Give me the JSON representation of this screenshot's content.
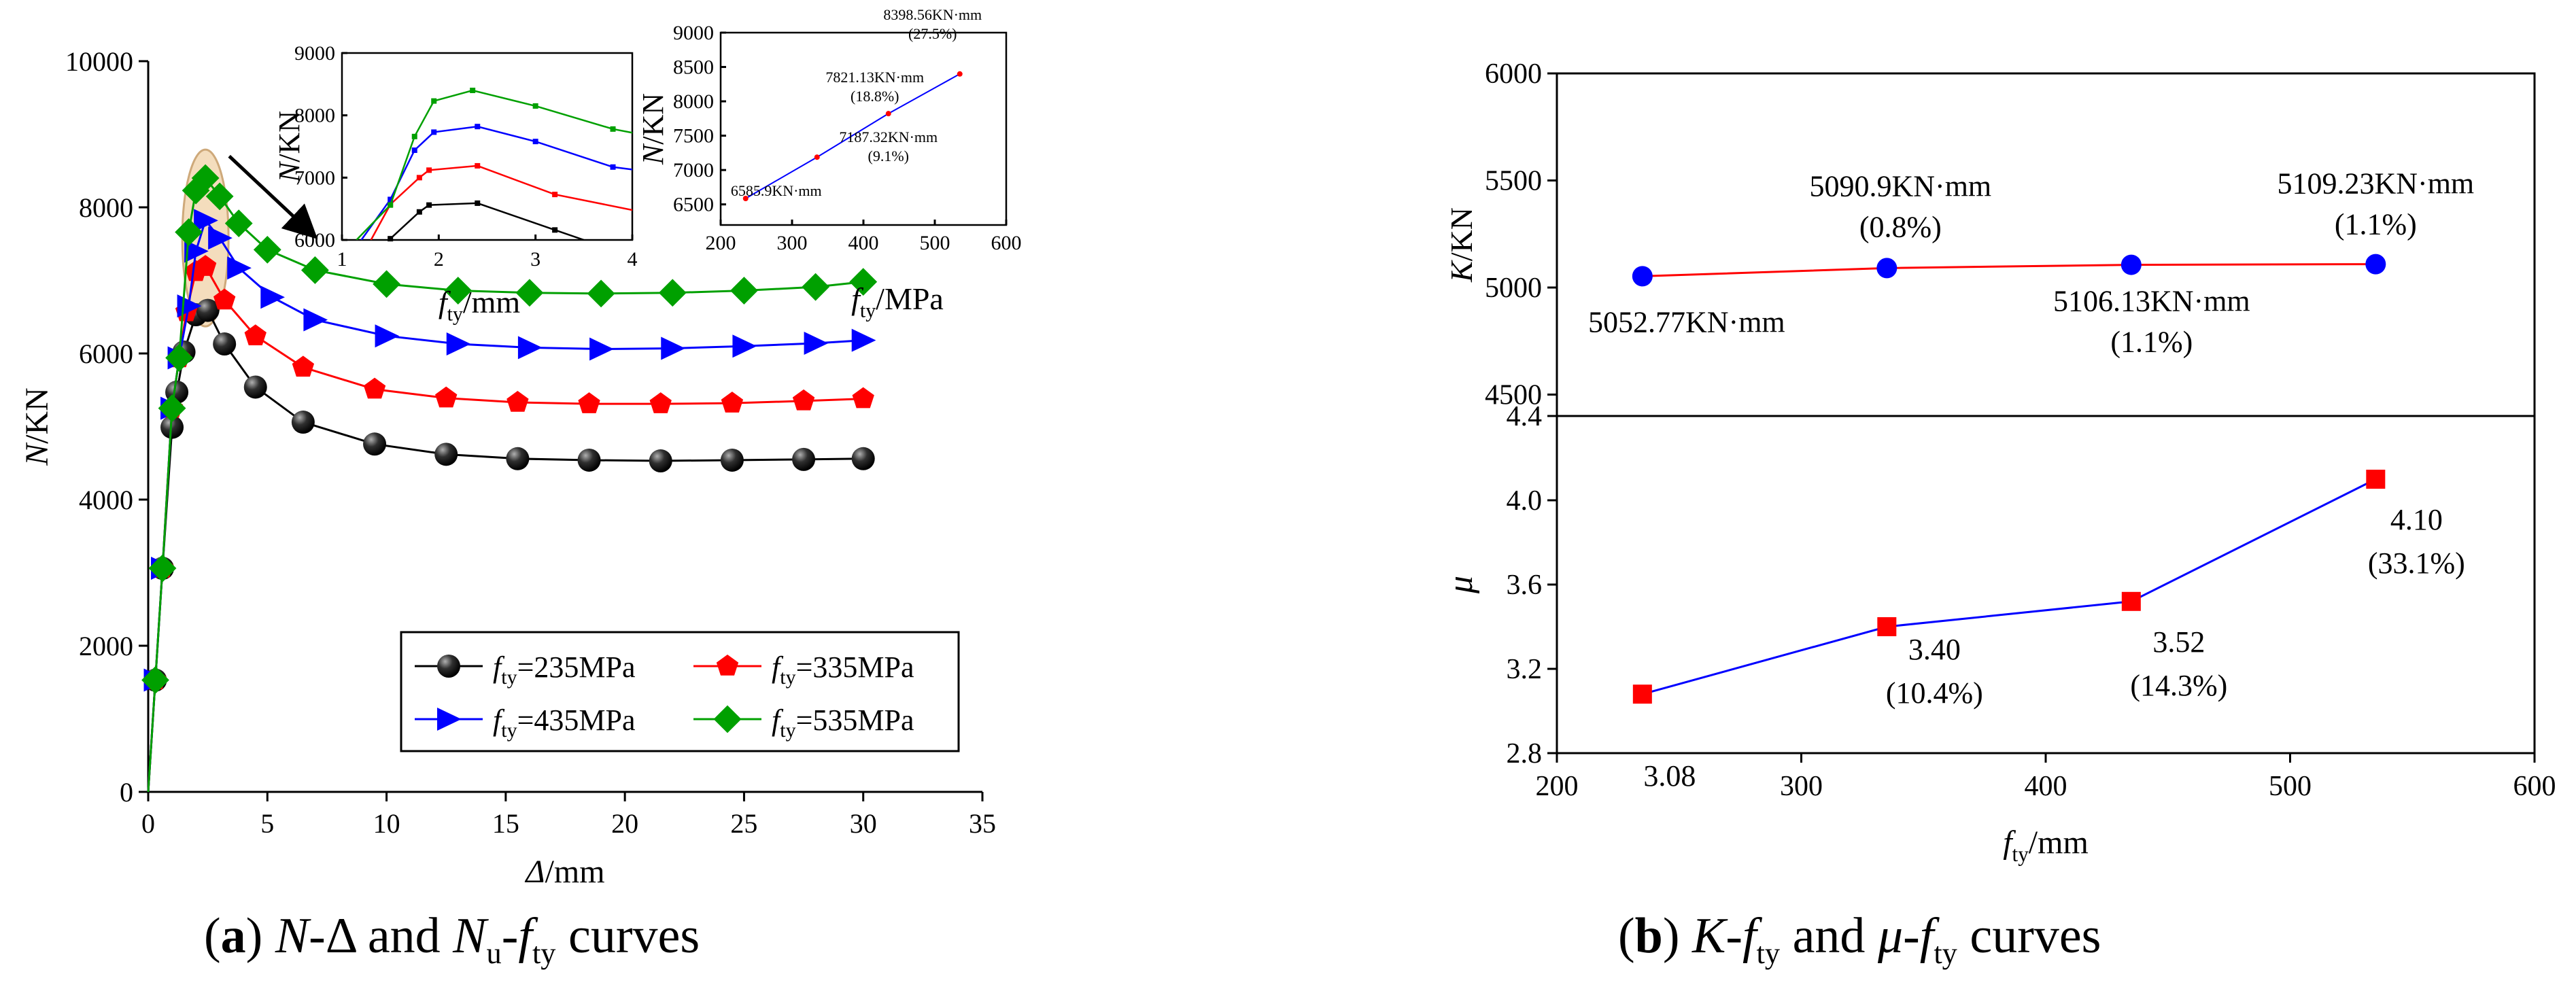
{
  "captions": {
    "a": {
      "letter": "a",
      "text_1": "N",
      "text_2": "-Δ and ",
      "text_3": "N",
      "text_4": "u",
      "text_5": "-",
      "text_6": "f",
      "text_7": "ty",
      "text_8": " curves"
    },
    "b": {
      "letter": "b",
      "text_1": "K",
      "text_2": "-",
      "text_3": "f",
      "text_4": "ty",
      "text_5": " and ",
      "text_6": "μ",
      "text_7": "-",
      "text_8": "f",
      "text_9": "ty",
      "text_10": " curves"
    }
  },
  "chart_data": [
    {
      "id": "a-main",
      "type": "line",
      "title": "",
      "xlabel": "Δ/mm",
      "ylabel": "N/KN",
      "xlim": [
        0,
        35
      ],
      "ylim": [
        0,
        10000
      ],
      "xticks": [
        0,
        5,
        10,
        15,
        20,
        25,
        30,
        35
      ],
      "yticks": [
        0,
        2000,
        4000,
        6000,
        8000,
        10000
      ],
      "grid": false,
      "legend_position": "bottom-right",
      "highlight_label": "f_ty/MPa",
      "series": [
        {
          "name": "f_ty=235MPa",
          "color": "#000000",
          "marker": "sphere",
          "x": [
            0,
            0.3,
            0.6,
            1.0,
            1.2,
            1.5,
            2.0,
            2.5,
            3.2,
            4.5,
            6.5,
            9.5,
            12.5,
            15.5,
            18.5,
            21.5,
            24.5,
            27.5,
            30
          ],
          "y": [
            0,
            1530,
            3060,
            4990,
            5470,
            6020,
            6530,
            6590,
            6130,
            5540,
            5060,
            4760,
            4620,
            4560,
            4540,
            4530,
            4540,
            4550,
            4560
          ]
        },
        {
          "name": "f_ty=335MPa",
          "color": "#ff0000",
          "marker": "pentagon",
          "x": [
            0,
            0.3,
            0.6,
            1.0,
            1.3,
            1.6,
            2.0,
            2.4,
            3.2,
            4.5,
            6.5,
            9.5,
            12.5,
            15.5,
            18.5,
            21.5,
            24.5,
            27.5,
            30
          ],
          "y": [
            0,
            1530,
            3060,
            5250,
            5940,
            6570,
            7120,
            7190,
            6730,
            6240,
            5810,
            5510,
            5390,
            5330,
            5310,
            5310,
            5320,
            5350,
            5380
          ]
        },
        {
          "name": "f_ty=435MPa",
          "color": "#0000ff",
          "marker": "triangle-right",
          "x": [
            0,
            0.3,
            0.6,
            1.0,
            1.3,
            1.7,
            2.0,
            2.4,
            3.0,
            3.8,
            5.2,
            7.0,
            10.0,
            13.0,
            16.0,
            19.0,
            22.0,
            25.0,
            28.0,
            30
          ],
          "y": [
            0,
            1530,
            3060,
            5250,
            5940,
            6650,
            7400,
            7820,
            7580,
            7170,
            6770,
            6460,
            6240,
            6130,
            6080,
            6060,
            6070,
            6100,
            6140,
            6180
          ]
        },
        {
          "name": "f_ty=535MPa",
          "color": "#00a000",
          "marker": "diamond",
          "x": [
            0,
            0.3,
            0.6,
            1.0,
            1.3,
            1.7,
            2.0,
            2.4,
            3.0,
            3.8,
            5.0,
            7.0,
            10.0,
            13.0,
            16.0,
            19.0,
            22.0,
            25.0,
            28.0,
            30
          ],
          "y": [
            0,
            1530,
            3060,
            5250,
            5940,
            7660,
            8230,
            8400,
            8150,
            7780,
            7420,
            7140,
            6950,
            6860,
            6830,
            6820,
            6830,
            6860,
            6910,
            6980
          ]
        }
      ]
    },
    {
      "id": "a-inset-zoom",
      "type": "line",
      "title": "",
      "xlabel": "f_ty/mm",
      "ylabel": "N/KN",
      "xlim": [
        1,
        4
      ],
      "ylim": [
        6000,
        9000
      ],
      "xticks": [
        1,
        2,
        3,
        4
      ],
      "yticks": [
        6000,
        7000,
        8000,
        9000
      ],
      "series": [
        {
          "name": "f_ty=235MPa",
          "color": "#000000",
          "x": [
            1.5,
            1.8,
            1.9,
            2.4,
            3.2,
            3.5
          ],
          "y": [
            6020,
            6450,
            6560,
            6590,
            6160,
            6000
          ]
        },
        {
          "name": "f_ty=335MPa",
          "color": "#ff0000",
          "x": [
            1.3,
            1.5,
            1.8,
            1.9,
            2.4,
            3.2,
            4.0
          ],
          "y": [
            6000,
            6570,
            7000,
            7120,
            7190,
            6730,
            6480
          ]
        },
        {
          "name": "f_ty=435MPa",
          "color": "#0000ff",
          "x": [
            1.2,
            1.5,
            1.75,
            1.95,
            2.4,
            3.0,
            3.8,
            4.0
          ],
          "y": [
            6000,
            6650,
            7440,
            7730,
            7820,
            7580,
            7170,
            7130
          ]
        },
        {
          "name": "f_ty=535MPa",
          "color": "#00a000",
          "x": [
            1.15,
            1.5,
            1.75,
            1.95,
            2.35,
            3.0,
            3.8,
            4.0
          ],
          "y": [
            6000,
            6560,
            7660,
            8230,
            8400,
            8150,
            7780,
            7720
          ]
        }
      ]
    },
    {
      "id": "a-inset-peak",
      "type": "line",
      "title": "",
      "xlabel": "",
      "ylabel": "N/KN",
      "xlim": [
        200,
        600
      ],
      "ylim": [
        6200,
        9000
      ],
      "xticks": [
        200,
        300,
        400,
        500,
        600
      ],
      "yticks": [
        6500,
        7000,
        7500,
        8000,
        8500,
        9000
      ],
      "series": [
        {
          "name": "N_u",
          "color": "#0000ff",
          "point_color": "#ff0000",
          "x": [
            235,
            335,
            435,
            535
          ],
          "y": [
            6585.9,
            7187.32,
            7821.13,
            8398.56
          ],
          "labels": [
            "6585.9KN·mm",
            "7187.32KN·mm\n(9.1%)",
            "7821.13KN·mm\n(18.8%)",
            "8398.56KN·mm\n(27.5%)"
          ]
        }
      ]
    },
    {
      "id": "b-top",
      "type": "line",
      "title": "",
      "xlabel": "",
      "ylabel": "K/KN",
      "xlim": [
        200,
        600
      ],
      "ylim": [
        4400,
        6000
      ],
      "yticks": [
        4500,
        5000,
        5500,
        6000
      ],
      "ytick_labels": [
        "4500",
        "5000",
        "5500",
        "6000"
      ],
      "series": [
        {
          "name": "K",
          "color": "#ff0000",
          "point_color": "#0000ff",
          "marker": "circle",
          "x": [
            235,
            335,
            435,
            535
          ],
          "y": [
            5052.77,
            5090.9,
            5106.13,
            5109.23
          ],
          "labels": [
            "5052.77KN·mm",
            "5090.9KN·mm\n(0.8%)",
            "5106.13KN·mm\n(1.1%)",
            "5109.23KN·mm\n(1.1%)"
          ]
        }
      ]
    },
    {
      "id": "b-bottom",
      "type": "line",
      "title": "",
      "xlabel": "f_ty/mm",
      "ylabel": "μ",
      "xlim": [
        200,
        600
      ],
      "ylim": [
        2.8,
        4.4
      ],
      "xticks": [
        200,
        300,
        400,
        500,
        600
      ],
      "yticks": [
        2.8,
        3.2,
        3.6,
        4.0,
        4.4
      ],
      "ytick_labels": [
        "2.8",
        "3.2",
        "3.6",
        "4.0",
        "4.4"
      ],
      "series": [
        {
          "name": "μ",
          "color": "#0000ff",
          "point_color": "#ff0000",
          "marker": "square",
          "x": [
            235,
            335,
            435,
            535
          ],
          "y": [
            3.08,
            3.4,
            3.52,
            4.1
          ],
          "labels": [
            "3.08",
            "3.40\n(10.4%)",
            "3.52\n(14.3%)",
            "4.10\n(33.1%)"
          ]
        }
      ]
    }
  ]
}
